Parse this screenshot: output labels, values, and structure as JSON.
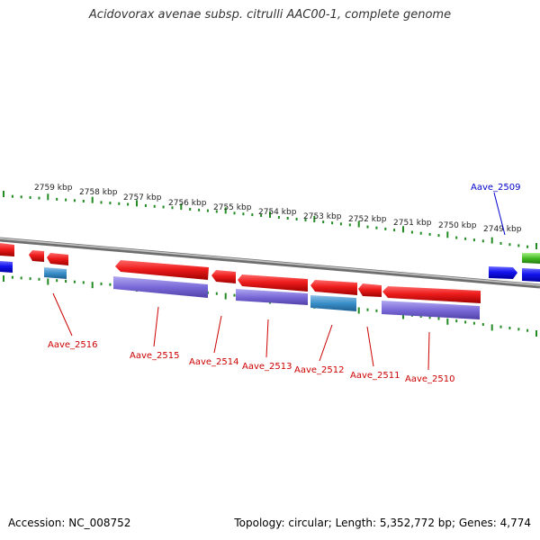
{
  "title": "Acidovorax avenae subsp. citrulli AAC00-1, complete genome",
  "accession": "Accession: NC_008752",
  "topology": "Topology: circular; Length: 5,352,772 bp; Genes: 4,774",
  "ruler": {
    "labels": [
      "2759 kbp",
      "2758 kbp",
      "2757 kbp",
      "2756 kbp",
      "2755 kbp",
      "2754 kbp",
      "2753 kbp",
      "2752 kbp",
      "2751 kbp",
      "2750 kbp",
      "2749 kbp"
    ]
  },
  "genes": [
    {
      "name": "Aave_2516",
      "color": "#cc0000"
    },
    {
      "name": "Aave_2515",
      "color": "#cc0000"
    },
    {
      "name": "Aave_2514",
      "color": "#cc0000"
    },
    {
      "name": "Aave_2513",
      "color": "#cc0000"
    },
    {
      "name": "Aave_2512",
      "color": "#cc0000"
    },
    {
      "name": "Aave_2511",
      "color": "#cc0000"
    },
    {
      "name": "Aave_2510",
      "color": "#cc0000"
    },
    {
      "name": "Aave_2509",
      "color": "#0000cc"
    }
  ],
  "colors": {
    "reverse_cds": "#e82020",
    "forward_cds": "#1010ee",
    "rna": "#3a8fc8",
    "orf": "#7a6ad8",
    "other": "#44bb22",
    "backbone": "#888888",
    "ruler": "#228b22"
  }
}
